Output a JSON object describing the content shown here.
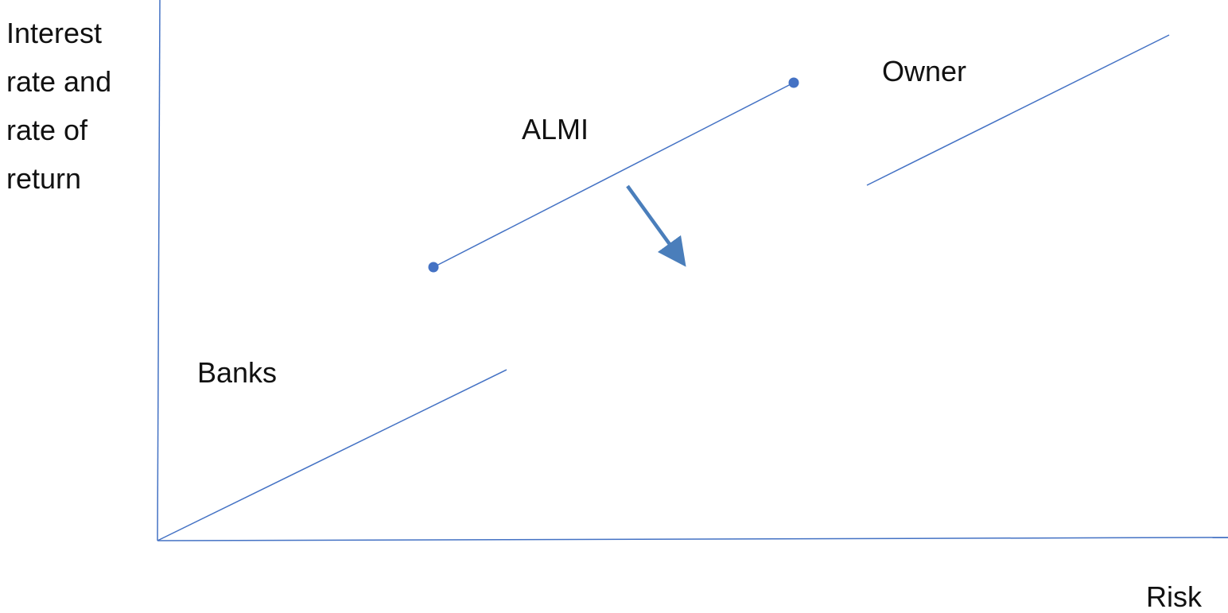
{
  "axes": {
    "y_label_lines": [
      "Interest",
      "rate and",
      "rate of",
      "return"
    ],
    "x_label": "Risk"
  },
  "labels": {
    "banks": "Banks",
    "almi": "ALMI",
    "owner": "Owner"
  },
  "colors": {
    "line": "#4472C4",
    "dot": "#4472C4",
    "arrow": "#4A7EBB",
    "text": "#111111"
  }
}
